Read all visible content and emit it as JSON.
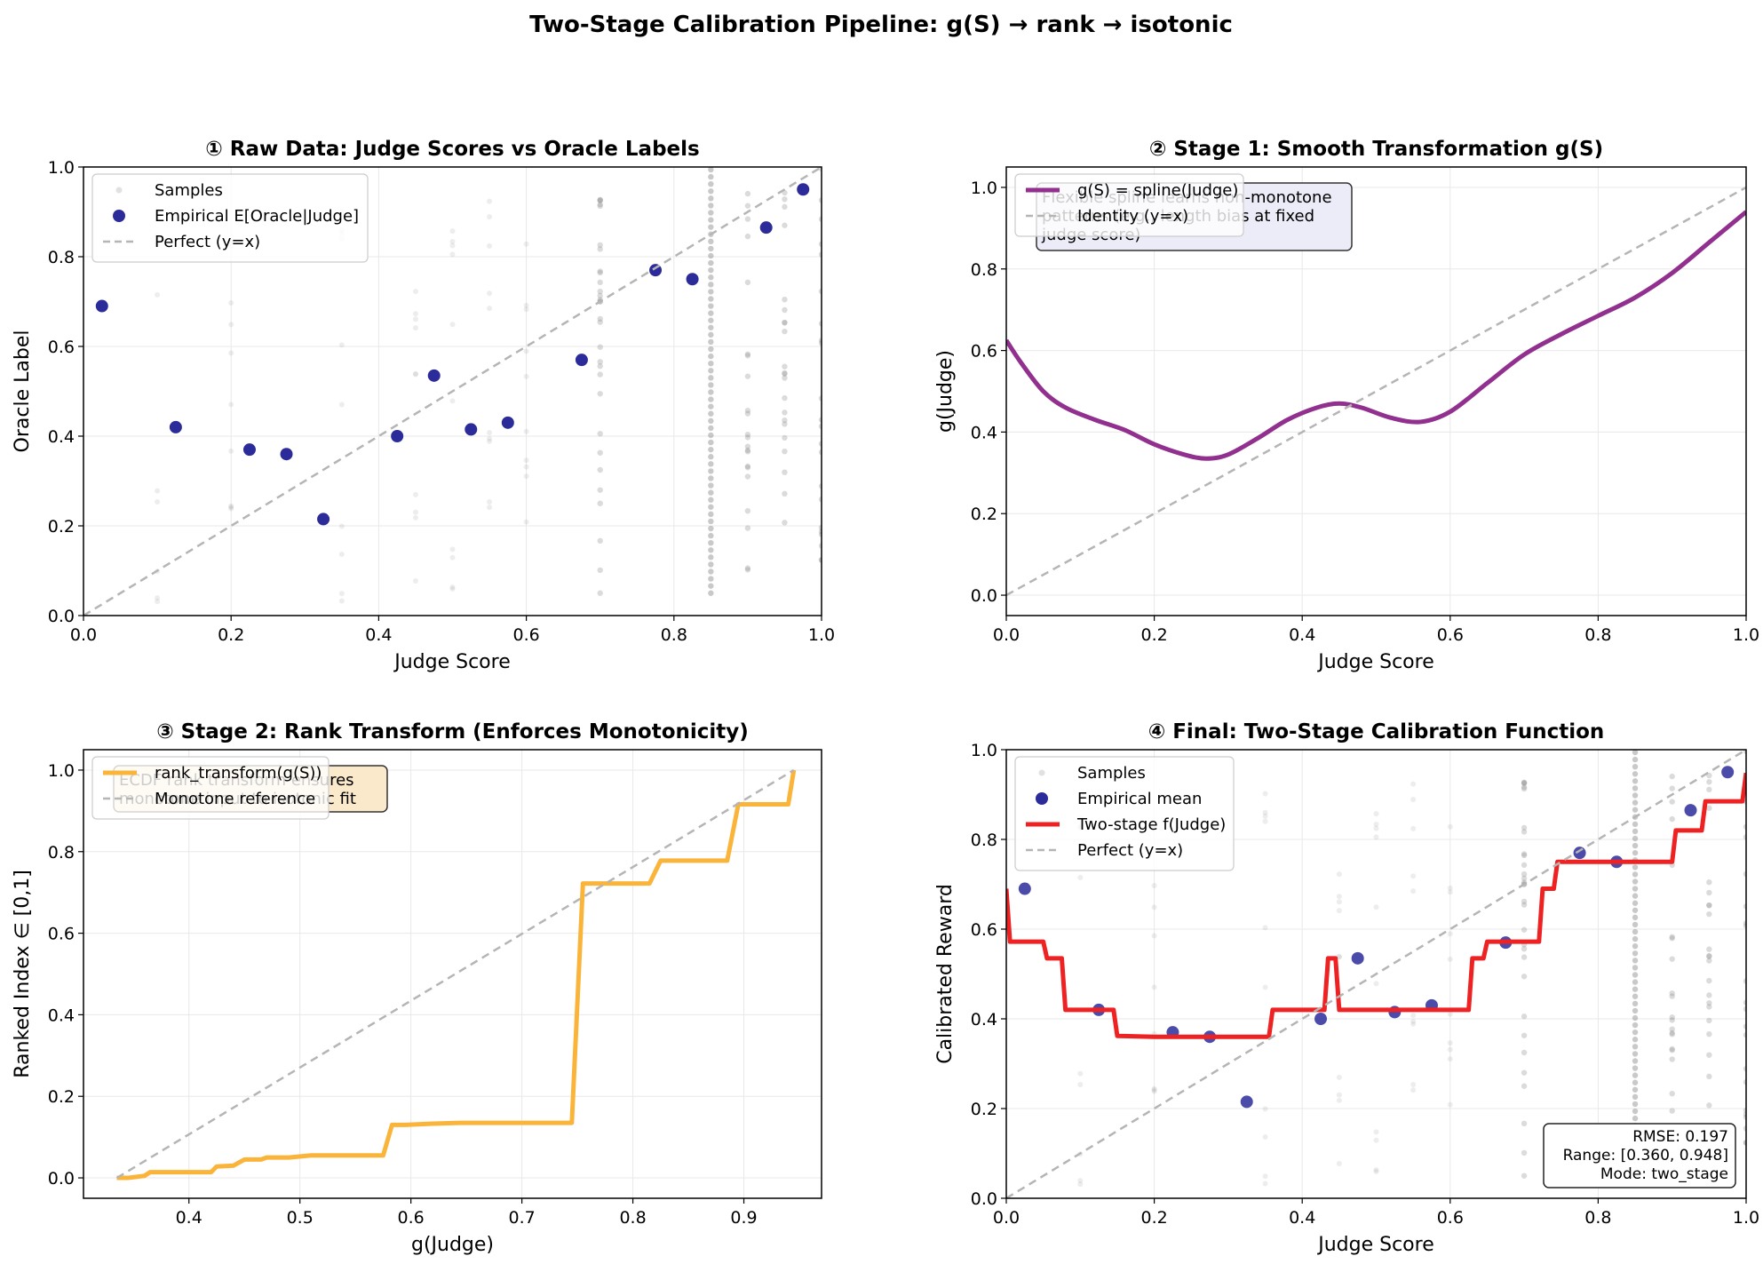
{
  "figure_title": "Two-Stage Calibration Pipeline: g(S) → rank → isotonic",
  "colors": {
    "empirical": "#2b2b9a",
    "spline": "#91308f",
    "rank": "#fbb43a",
    "twostage": "#ee2222",
    "reference": "#b5b5b5",
    "samples": "#888888",
    "grid": "#e8e8e8"
  },
  "chart_data": [
    {
      "type": "scatter",
      "title": "① Raw Data: Judge Scores vs Oracle Labels",
      "xlabel": "Judge Score",
      "ylabel": "Oracle Label",
      "xlim": [
        0,
        1
      ],
      "ylim": [
        0,
        1
      ],
      "xticks": [
        "0.0",
        "0.2",
        "0.4",
        "0.6",
        "0.8",
        "1.0"
      ],
      "yticks": [
        "0.0",
        "0.2",
        "0.4",
        "0.6",
        "0.8",
        "1.0"
      ],
      "grid": true,
      "legend_position": "top-left",
      "legend": [
        "Samples",
        "Empirical E[Oracle|Judge]",
        "Perfect (y=x)"
      ],
      "series": [
        {
          "name": "Empirical E[Oracle|Judge]",
          "x": [
            0.025,
            0.125,
            0.225,
            0.275,
            0.325,
            0.425,
            0.475,
            0.525,
            0.575,
            0.675,
            0.775,
            0.825,
            0.925,
            0.975
          ],
          "y": [
            0.69,
            0.42,
            0.37,
            0.36,
            0.215,
            0.4,
            0.535,
            0.415,
            0.43,
            0.57,
            0.77,
            0.75,
            0.865,
            0.95
          ]
        },
        {
          "name": "Perfect (y=x)",
          "x": [
            0,
            1
          ],
          "y": [
            0,
            1
          ]
        }
      ]
    },
    {
      "type": "line",
      "title": "② Stage 1: Smooth Transformation g(S)",
      "xlabel": "Judge Score",
      "ylabel": "g(Judge)",
      "xlim": [
        0,
        1
      ],
      "ylim": [
        -0.05,
        1.05
      ],
      "xticks": [
        "0.0",
        "0.2",
        "0.4",
        "0.6",
        "0.8",
        "1.0"
      ],
      "yticks": [
        "0.0",
        "0.2",
        "0.4",
        "0.6",
        "0.8",
        "1.0"
      ],
      "grid": true,
      "legend_position": "top-left",
      "legend": [
        "g(S) = spline(Judge)",
        "Identity (y=x)"
      ],
      "annotation": [
        "Flexible spline learns non-monotone",
        "patterns (e.g., length bias at fixed",
        "judge score)"
      ],
      "series": [
        {
          "name": "g(S) = spline(Judge)",
          "x": [
            0,
            0.02,
            0.05,
            0.08,
            0.12,
            0.16,
            0.2,
            0.24,
            0.27,
            0.3,
            0.34,
            0.38,
            0.42,
            0.45,
            0.48,
            0.52,
            0.56,
            0.6,
            0.65,
            0.7,
            0.75,
            0.8,
            0.85,
            0.9,
            0.95,
            1.0
          ],
          "y": [
            0.625,
            0.57,
            0.5,
            0.46,
            0.43,
            0.405,
            0.37,
            0.345,
            0.335,
            0.345,
            0.385,
            0.43,
            0.46,
            0.47,
            0.46,
            0.435,
            0.425,
            0.45,
            0.52,
            0.59,
            0.64,
            0.685,
            0.73,
            0.79,
            0.865,
            0.94
          ]
        },
        {
          "name": "Identity (y=x)",
          "x": [
            0,
            1
          ],
          "y": [
            0,
            1
          ]
        }
      ]
    },
    {
      "type": "line",
      "title": "③ Stage 2: Rank Transform (Enforces Monotonicity)",
      "xlabel": "g(Judge)",
      "ylabel": "Ranked Index ∈ [0,1]",
      "xlim": [
        0.305,
        0.97
      ],
      "ylim": [
        -0.05,
        1.05
      ],
      "xticks": [
        "0.4",
        "0.5",
        "0.6",
        "0.7",
        "0.8",
        "0.9"
      ],
      "yticks": [
        "0.0",
        "0.2",
        "0.4",
        "0.6",
        "0.8",
        "1.0"
      ],
      "grid": true,
      "legend_position": "top-left",
      "legend": [
        "rank_transform(g(S))",
        "Monotone reference"
      ],
      "annotation": [
        "ECDF rank transform ensures",
        "monotone input to isotonic fit"
      ],
      "series": [
        {
          "name": "rank_transform(g(S))",
          "x": [
            0.335,
            0.345,
            0.36,
            0.365,
            0.42,
            0.425,
            0.44,
            0.45,
            0.465,
            0.47,
            0.49,
            0.51,
            0.575,
            0.583,
            0.595,
            0.62,
            0.645,
            0.7,
            0.745,
            0.755,
            0.815,
            0.825,
            0.885,
            0.895,
            0.94,
            0.945
          ],
          "y": [
            0.0,
            0.0,
            0.005,
            0.014,
            0.014,
            0.028,
            0.03,
            0.045,
            0.045,
            0.05,
            0.05,
            0.055,
            0.055,
            0.13,
            0.13,
            0.133,
            0.135,
            0.135,
            0.135,
            0.722,
            0.722,
            0.778,
            0.778,
            0.916,
            0.916,
            1.0
          ]
        },
        {
          "name": "Monotone reference",
          "x": [
            0.335,
            0.945
          ],
          "y": [
            0.0,
            1.0
          ]
        }
      ]
    },
    {
      "type": "line",
      "title": "④ Final: Two-Stage Calibration Function",
      "xlabel": "Judge Score",
      "ylabel": "Calibrated Reward",
      "xlim": [
        0,
        1
      ],
      "ylim": [
        0,
        1
      ],
      "xticks": [
        "0.0",
        "0.2",
        "0.4",
        "0.6",
        "0.8",
        "1.0"
      ],
      "yticks": [
        "0.0",
        "0.2",
        "0.4",
        "0.6",
        "0.8",
        "1.0"
      ],
      "grid": true,
      "legend_position": "top-left",
      "legend": [
        "Samples",
        "Empirical mean",
        "Two-stage f(Judge)",
        "Perfect (y=x)"
      ],
      "stats": [
        "RMSE: 0.197",
        "Range: [0.360, 0.948]",
        "Mode: two_stage"
      ],
      "series": [
        {
          "name": "Empirical mean",
          "x": [
            0.025,
            0.125,
            0.225,
            0.275,
            0.325,
            0.425,
            0.475,
            0.525,
            0.575,
            0.675,
            0.775,
            0.825,
            0.925,
            0.975
          ],
          "y": [
            0.69,
            0.42,
            0.37,
            0.36,
            0.215,
            0.4,
            0.535,
            0.415,
            0.43,
            0.57,
            0.77,
            0.75,
            0.865,
            0.95
          ]
        },
        {
          "name": "Two-stage f(Judge)",
          "x": [
            0,
            0.005,
            0.05,
            0.055,
            0.075,
            0.08,
            0.145,
            0.15,
            0.2,
            0.355,
            0.36,
            0.43,
            0.435,
            0.445,
            0.45,
            0.625,
            0.63,
            0.645,
            0.65,
            0.68,
            0.685,
            0.72,
            0.725,
            0.74,
            0.745,
            0.75,
            0.755,
            0.9,
            0.905,
            0.94,
            0.945,
            0.995,
            1.0
          ],
          "y": [
            0.69,
            0.572,
            0.572,
            0.535,
            0.535,
            0.42,
            0.42,
            0.362,
            0.36,
            0.36,
            0.42,
            0.42,
            0.535,
            0.535,
            0.42,
            0.42,
            0.535,
            0.535,
            0.572,
            0.572,
            0.572,
            0.572,
            0.69,
            0.69,
            0.75,
            0.75,
            0.75,
            0.75,
            0.82,
            0.82,
            0.885,
            0.885,
            0.948
          ]
        },
        {
          "name": "Perfect (y=x)",
          "x": [
            0,
            1
          ],
          "y": [
            0,
            1
          ]
        }
      ]
    }
  ]
}
